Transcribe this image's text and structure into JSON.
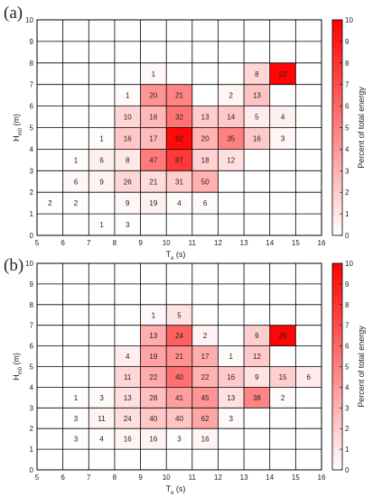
{
  "chart_data": [
    {
      "type": "heatmap",
      "panel_label": "(a)",
      "xlabel_main": "T",
      "xlabel_sub": "e",
      "xlabel_unit": " (s)",
      "ylabel_main": "H",
      "ylabel_sub": "m0",
      "ylabel_unit": " (m)",
      "colorbar_label": "Percent of total energy",
      "xlim": [
        5,
        16
      ],
      "ylim": [
        0,
        10
      ],
      "clim": [
        0,
        10
      ],
      "xticks": [
        "5",
        "6",
        "7",
        "8",
        "9",
        "10",
        "11",
        "12",
        "13",
        "14",
        "15",
        "16"
      ],
      "yticks": [
        "0",
        "1",
        "2",
        "3",
        "4",
        "5",
        "6",
        "7",
        "8",
        "9",
        "10"
      ],
      "cticks": [
        "0",
        "1",
        "2",
        "3",
        "4",
        "5",
        "6",
        "7",
        "8",
        "9",
        "10"
      ],
      "grid": true,
      "cells": [
        {
          "x": 9,
          "y": 7,
          "n": "1",
          "e": 0.3
        },
        {
          "x": 13,
          "y": 7,
          "n": "8",
          "e": 1.6
        },
        {
          "x": 14,
          "y": 7,
          "n": "22",
          "e": 9.8
        },
        {
          "x": 8,
          "y": 6,
          "n": "1",
          "e": 0.2
        },
        {
          "x": 9,
          "y": 6,
          "n": "20",
          "e": 4.2
        },
        {
          "x": 10,
          "y": 6,
          "n": "21",
          "e": 4.8
        },
        {
          "x": 12,
          "y": 6,
          "n": "2",
          "e": 0.4
        },
        {
          "x": 13,
          "y": 6,
          "n": "13",
          "e": 2.4
        },
        {
          "x": 8,
          "y": 5,
          "n": "10",
          "e": 1.6
        },
        {
          "x": 9,
          "y": 5,
          "n": "16",
          "e": 2.8
        },
        {
          "x": 10,
          "y": 5,
          "n": "32",
          "e": 5.5
        },
        {
          "x": 11,
          "y": 5,
          "n": "13",
          "e": 2.0
        },
        {
          "x": 12,
          "y": 5,
          "n": "14",
          "e": 2.2
        },
        {
          "x": 13,
          "y": 5,
          "n": "5",
          "e": 0.8
        },
        {
          "x": 14,
          "y": 5,
          "n": "4",
          "e": 0.6
        },
        {
          "x": 7,
          "y": 4,
          "n": "1",
          "e": 0.1
        },
        {
          "x": 8,
          "y": 4,
          "n": "16",
          "e": 2.2
        },
        {
          "x": 9,
          "y": 4,
          "n": "17",
          "e": 2.7
        },
        {
          "x": 10,
          "y": 4,
          "n": "62",
          "e": 9.6
        },
        {
          "x": 11,
          "y": 4,
          "n": "20",
          "e": 3.0
        },
        {
          "x": 12,
          "y": 4,
          "n": "35",
          "e": 5.0
        },
        {
          "x": 13,
          "y": 4,
          "n": "16",
          "e": 2.1
        },
        {
          "x": 14,
          "y": 4,
          "n": "3",
          "e": 0.4
        },
        {
          "x": 6,
          "y": 3,
          "n": "1",
          "e": 0.1
        },
        {
          "x": 7,
          "y": 3,
          "n": "6",
          "e": 0.6
        },
        {
          "x": 8,
          "y": 3,
          "n": "8",
          "e": 0.9
        },
        {
          "x": 9,
          "y": 3,
          "n": "47",
          "e": 5.2
        },
        {
          "x": 10,
          "y": 3,
          "n": "87",
          "e": 7.8
        },
        {
          "x": 11,
          "y": 3,
          "n": "18",
          "e": 1.8
        },
        {
          "x": 12,
          "y": 3,
          "n": "12",
          "e": 1.2
        },
        {
          "x": 6,
          "y": 2,
          "n": "6",
          "e": 0.3
        },
        {
          "x": 7,
          "y": 2,
          "n": "9",
          "e": 0.5
        },
        {
          "x": 8,
          "y": 2,
          "n": "26",
          "e": 1.6
        },
        {
          "x": 9,
          "y": 2,
          "n": "21",
          "e": 1.4
        },
        {
          "x": 10,
          "y": 2,
          "n": "31",
          "e": 2.0
        },
        {
          "x": 11,
          "y": 2,
          "n": "50",
          "e": 3.1
        },
        {
          "x": 5,
          "y": 1,
          "n": "2",
          "e": 0.05
        },
        {
          "x": 6,
          "y": 1,
          "n": "2",
          "e": 0.05
        },
        {
          "x": 8,
          "y": 1,
          "n": "9",
          "e": 0.3
        },
        {
          "x": 9,
          "y": 1,
          "n": "19",
          "e": 0.6
        },
        {
          "x": 10,
          "y": 1,
          "n": "4",
          "e": 0.15
        },
        {
          "x": 11,
          "y": 1,
          "n": "6",
          "e": 0.2
        },
        {
          "x": 7,
          "y": 0,
          "n": "1",
          "e": 0.02
        },
        {
          "x": 8,
          "y": 0,
          "n": "3",
          "e": 0.04
        }
      ]
    },
    {
      "type": "heatmap",
      "panel_label": "(b)",
      "xlabel_main": "T",
      "xlabel_sub": "e",
      "xlabel_unit": " (s)",
      "ylabel_main": "H",
      "ylabel_sub": "m0",
      "ylabel_unit": " (m)",
      "colorbar_label": "Percent of total energy",
      "xlim": [
        5,
        16
      ],
      "ylim": [
        0,
        10
      ],
      "clim": [
        0,
        10
      ],
      "xticks": [
        "5",
        "6",
        "7",
        "8",
        "9",
        "10",
        "11",
        "12",
        "13",
        "14",
        "15",
        "16"
      ],
      "yticks": [
        "0",
        "1",
        "2",
        "3",
        "4",
        "5",
        "6",
        "7",
        "8",
        "9",
        "10"
      ],
      "cticks": [
        "0",
        "1",
        "2",
        "3",
        "4",
        "5",
        "6",
        "7",
        "8",
        "9",
        "10"
      ],
      "grid": true,
      "cells": [
        {
          "x": 9,
          "y": 7,
          "n": "1",
          "e": 0.3
        },
        {
          "x": 10,
          "y": 7,
          "n": "5",
          "e": 1.1
        },
        {
          "x": 9,
          "y": 6,
          "n": "13",
          "e": 3.2
        },
        {
          "x": 10,
          "y": 6,
          "n": "24",
          "e": 6.2
        },
        {
          "x": 11,
          "y": 6,
          "n": "2",
          "e": 0.5
        },
        {
          "x": 13,
          "y": 6,
          "n": "9",
          "e": 1.9
        },
        {
          "x": 14,
          "y": 6,
          "n": "26",
          "e": 9.8
        },
        {
          "x": 8,
          "y": 5,
          "n": "4",
          "e": 0.7
        },
        {
          "x": 9,
          "y": 5,
          "n": "19",
          "e": 3.6
        },
        {
          "x": 10,
          "y": 5,
          "n": "21",
          "e": 4.3
        },
        {
          "x": 11,
          "y": 5,
          "n": "17",
          "e": 3.2
        },
        {
          "x": 12,
          "y": 5,
          "n": "1",
          "e": 0.2
        },
        {
          "x": 13,
          "y": 5,
          "n": "12",
          "e": 2.1
        },
        {
          "x": 8,
          "y": 4,
          "n": "11",
          "e": 1.6
        },
        {
          "x": 9,
          "y": 4,
          "n": "22",
          "e": 3.3
        },
        {
          "x": 10,
          "y": 4,
          "n": "40",
          "e": 5.6
        },
        {
          "x": 11,
          "y": 4,
          "n": "22",
          "e": 3.0
        },
        {
          "x": 12,
          "y": 4,
          "n": "16",
          "e": 2.1
        },
        {
          "x": 13,
          "y": 4,
          "n": "9",
          "e": 1.1
        },
        {
          "x": 14,
          "y": 4,
          "n": "15",
          "e": 1.9
        },
        {
          "x": 15,
          "y": 4,
          "n": "6",
          "e": 0.8
        },
        {
          "x": 6,
          "y": 3,
          "n": "1",
          "e": 0.1
        },
        {
          "x": 7,
          "y": 3,
          "n": "3",
          "e": 0.2
        },
        {
          "x": 8,
          "y": 3,
          "n": "13",
          "e": 1.2
        },
        {
          "x": 9,
          "y": 3,
          "n": "28",
          "e": 2.6
        },
        {
          "x": 10,
          "y": 3,
          "n": "41",
          "e": 3.8
        },
        {
          "x": 11,
          "y": 3,
          "n": "45",
          "e": 4.1
        },
        {
          "x": 12,
          "y": 3,
          "n": "13",
          "e": 1.2
        },
        {
          "x": 13,
          "y": 3,
          "n": "38",
          "e": 4.8
        },
        {
          "x": 14,
          "y": 3,
          "n": "2",
          "e": 0.2
        },
        {
          "x": 6,
          "y": 2,
          "n": "3",
          "e": 0.1
        },
        {
          "x": 7,
          "y": 2,
          "n": "11",
          "e": 0.5
        },
        {
          "x": 8,
          "y": 2,
          "n": "24",
          "e": 1.3
        },
        {
          "x": 9,
          "y": 2,
          "n": "40",
          "e": 2.2
        },
        {
          "x": 10,
          "y": 2,
          "n": "40",
          "e": 2.3
        },
        {
          "x": 11,
          "y": 2,
          "n": "62",
          "e": 3.5
        },
        {
          "x": 12,
          "y": 2,
          "n": "3",
          "e": 0.2
        },
        {
          "x": 6,
          "y": 1,
          "n": "3",
          "e": 0.05
        },
        {
          "x": 7,
          "y": 1,
          "n": "4",
          "e": 0.08
        },
        {
          "x": 8,
          "y": 1,
          "n": "16",
          "e": 0.4
        },
        {
          "x": 9,
          "y": 1,
          "n": "16",
          "e": 0.45
        },
        {
          "x": 10,
          "y": 1,
          "n": "3",
          "e": 0.08
        },
        {
          "x": 11,
          "y": 1,
          "n": "16",
          "e": 0.45
        }
      ]
    }
  ]
}
